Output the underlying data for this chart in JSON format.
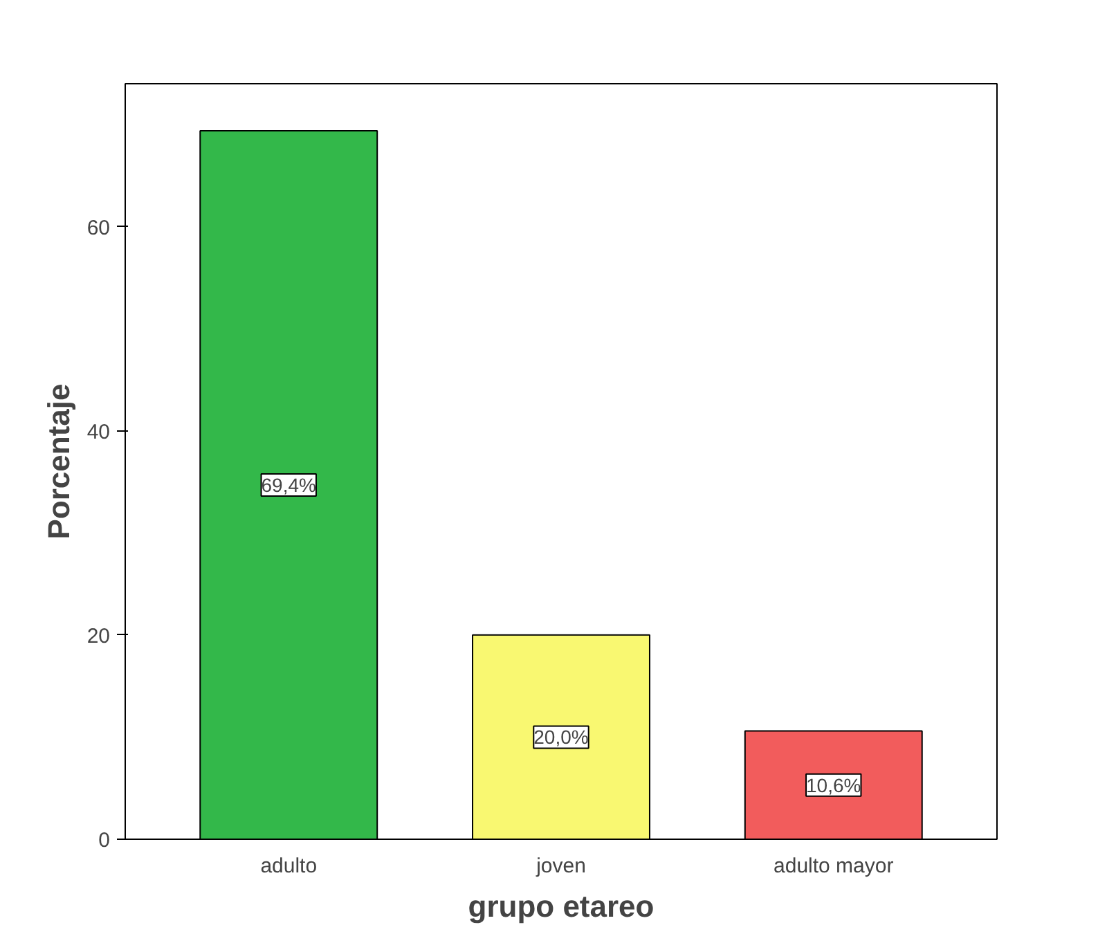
{
  "chart_data": {
    "type": "bar",
    "xlabel": "grupo etareo",
    "ylabel": "Porcentaje",
    "categories": [
      "adulto",
      "joven",
      "adulto mayor"
    ],
    "values": [
      69.4,
      20.0,
      10.6
    ],
    "colors": [
      "#33b84a",
      "#f9f871",
      "#f25c5c"
    ],
    "value_labels": [
      "69,4%",
      "20,0%",
      "10,6%"
    ],
    "ylim": [
      0,
      74
    ],
    "yticks": [
      0,
      20,
      40,
      60
    ],
    "grid": false
  }
}
